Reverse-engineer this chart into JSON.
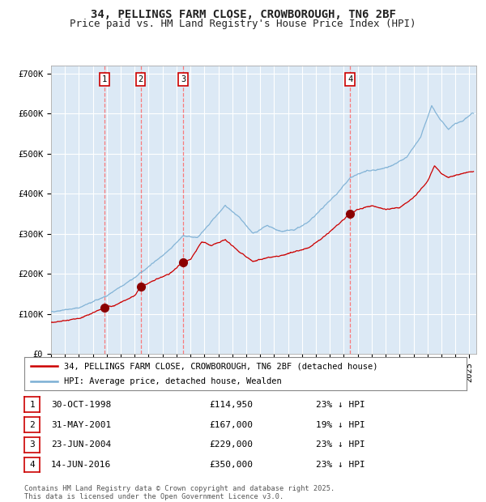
{
  "title": "34, PELLINGS FARM CLOSE, CROWBOROUGH, TN6 2BF",
  "subtitle": "Price paid vs. HM Land Registry's House Price Index (HPI)",
  "ylim": [
    0,
    720000
  ],
  "xlim_start": 1995.0,
  "xlim_end": 2025.5,
  "yticks": [
    0,
    100000,
    200000,
    300000,
    400000,
    500000,
    600000,
    700000
  ],
  "ytick_labels": [
    "£0",
    "£100K",
    "£200K",
    "£300K",
    "£400K",
    "£500K",
    "£600K",
    "£700K"
  ],
  "plot_bg_color": "#dce9f5",
  "grid_color": "#ffffff",
  "hpi_color": "#7bafd4",
  "price_color": "#cc0000",
  "marker_color": "#8b0000",
  "vline_color": "#ff6666",
  "transactions": [
    {
      "num": 1,
      "date_label": "30-OCT-1998",
      "year": 1998.83,
      "price": 114950,
      "pct": "23%",
      "dir": "↓"
    },
    {
      "num": 2,
      "date_label": "31-MAY-2001",
      "year": 2001.42,
      "price": 167000,
      "pct": "19%",
      "dir": "↓"
    },
    {
      "num": 3,
      "date_label": "23-JUN-2004",
      "year": 2004.48,
      "price": 229000,
      "pct": "23%",
      "dir": "↓"
    },
    {
      "num": 4,
      "date_label": "14-JUN-2016",
      "year": 2016.45,
      "price": 350000,
      "pct": "23%",
      "dir": "↓"
    }
  ],
  "legend_line1": "34, PELLINGS FARM CLOSE, CROWBOROUGH, TN6 2BF (detached house)",
  "legend_line2": "HPI: Average price, detached house, Wealden",
  "footnote": "Contains HM Land Registry data © Crown copyright and database right 2025.\nThis data is licensed under the Open Government Licence v3.0.",
  "title_fontsize": 10,
  "subtitle_fontsize": 9,
  "tick_fontsize": 7.5
}
